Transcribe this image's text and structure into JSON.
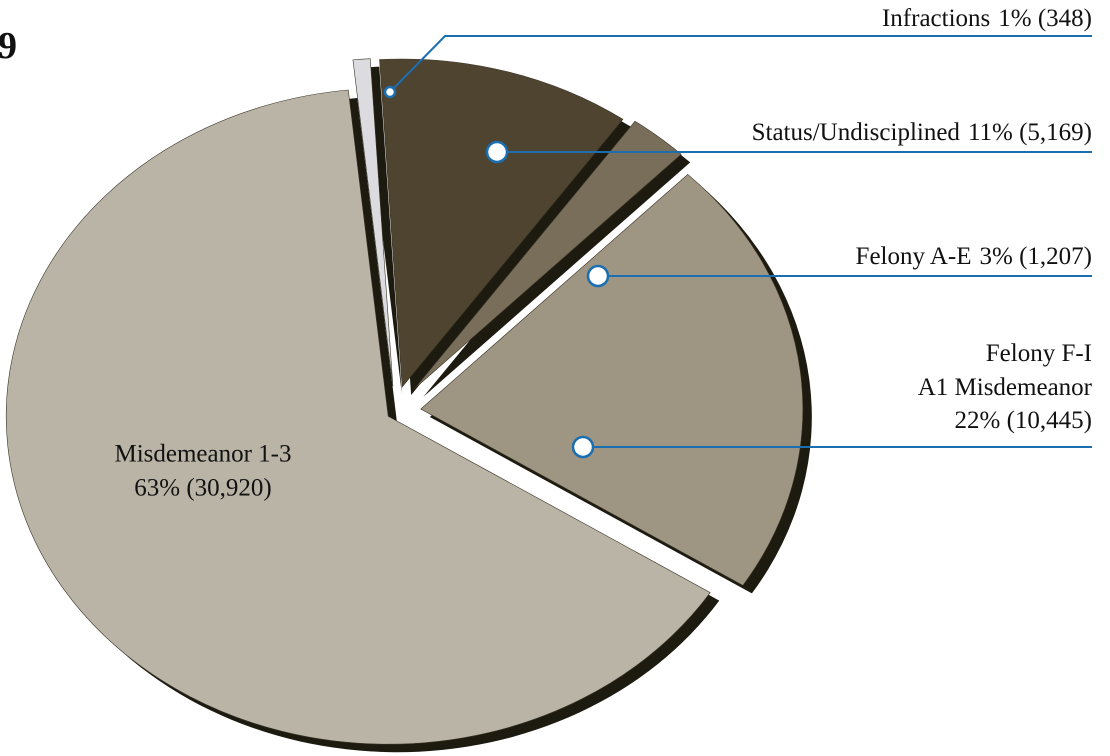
{
  "chart_data": {
    "type": "pie",
    "title": "9",
    "categories": [
      "Infractions",
      "Status/Undisciplined",
      "Felony A-E",
      [
        "Felony F-I",
        "A1 Misdemeanor"
      ],
      "Misdemeanor 1-3"
    ],
    "values": [
      348,
      5169,
      1207,
      10445,
      30920
    ],
    "value_labels": [
      "1% (348)",
      "11% (5,169)",
      "3% (1,207)",
      "22% (10,445)",
      "63% (30,920)"
    ],
    "colors": [
      "#dcdce0",
      "#4e4430",
      "#786e5a",
      "#9e9682",
      "#b9b4a6"
    ]
  }
}
